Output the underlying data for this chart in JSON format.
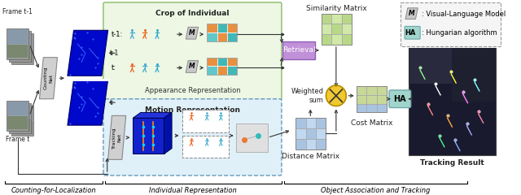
{
  "bg_color": "#ffffff",
  "section_labels": [
    "Counting-for-Localization",
    "Individual Representation",
    "Object Association and Tracking"
  ],
  "legend_items": [
    {
      "symbol": "M",
      "desc": ": Visual-Language Model",
      "color": "#b0b0b0"
    },
    {
      "symbol": "HA",
      "desc": ": Hungarian algorithm",
      "color": "#a8d8d8"
    }
  ],
  "frame_labels": [
    "Frame t-1",
    "Frame t"
  ],
  "box_labels": [
    "Counting\nNet",
    "Tracking\nNet"
  ],
  "region_labels": [
    "Crop of Individual",
    "Appearance Representation",
    "Motion Representation"
  ],
  "matrix_labels": [
    "Similarity Matrix",
    "Cost Matrix",
    "Distance Matrix"
  ],
  "process_labels": [
    "Retrieval",
    "Weighted\nsum",
    "HA"
  ],
  "green_box_bg": "#edf7e4",
  "blue_box_bg": "#e0f0f8",
  "retrieval_color": "#c090d8",
  "ha_color": "#a0d4cc",
  "weighted_color": "#f0c830",
  "cost_top_color": "#c8d898",
  "cost_bot_color": "#a8c4e0",
  "sim_color1": "#b8d888",
  "sim_color2": "#d0e8a8",
  "dist_color1": "#a8c4e0",
  "dist_color2": "#c0d8f0",
  "feat_orange": "#e89040",
  "feat_teal": "#40b8b8",
  "feat_teal2": "#60c8c8"
}
